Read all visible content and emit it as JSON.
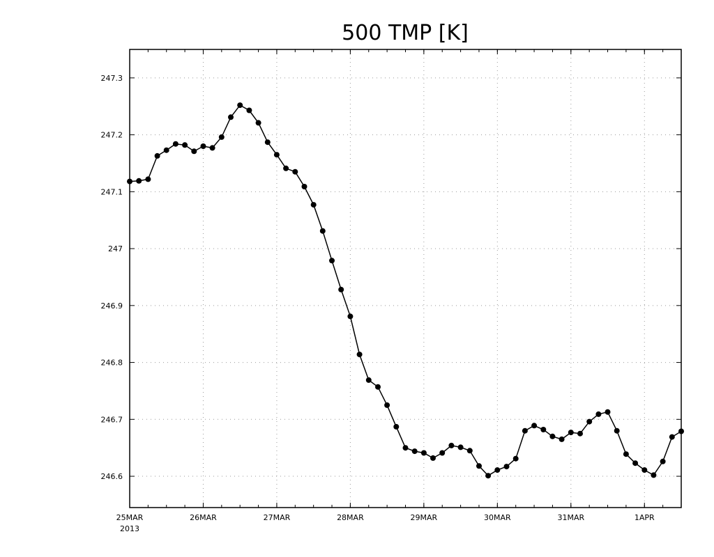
{
  "chart_data": {
    "type": "line",
    "title": "500 TMP [K]",
    "xlabel": "",
    "ylabel": "",
    "grid": true,
    "ylim": [
      246.545,
      247.35
    ],
    "y_ticks": [
      246.6,
      246.7,
      246.8,
      246.9,
      247,
      247.1,
      247.2,
      247.3
    ],
    "y_tick_labels": [
      "246.6",
      "246.7",
      "246.8",
      "246.9",
      "247",
      "247.1",
      "247.2",
      "247.3"
    ],
    "xlim": [
      "2013-03-25T00",
      "2013-04-01T12"
    ],
    "x_ticks": [
      "2013-03-25T00",
      "2013-03-26T00",
      "2013-03-27T00",
      "2013-03-28T00",
      "2013-03-29T00",
      "2013-03-30T00",
      "2013-03-31T00",
      "2013-04-01T00"
    ],
    "x_tick_labels": [
      "25MAR",
      "26MAR",
      "27MAR",
      "28MAR",
      "29MAR",
      "30MAR",
      "31MAR",
      "1APR"
    ],
    "x_year_label": "2013",
    "marker": "filled-circle",
    "series": [
      {
        "x": [
          "2013-03-25T00",
          "2013-03-25T03",
          "2013-03-25T06",
          "2013-03-25T09",
          "2013-03-25T12",
          "2013-03-25T15",
          "2013-03-25T18",
          "2013-03-25T21",
          "2013-03-26T00",
          "2013-03-26T03",
          "2013-03-26T06",
          "2013-03-26T09",
          "2013-03-26T12",
          "2013-03-26T15",
          "2013-03-26T18",
          "2013-03-26T21",
          "2013-03-27T00",
          "2013-03-27T03",
          "2013-03-27T06",
          "2013-03-27T09",
          "2013-03-27T12",
          "2013-03-27T15",
          "2013-03-27T18",
          "2013-03-27T21",
          "2013-03-28T00",
          "2013-03-28T03",
          "2013-03-28T06",
          "2013-03-28T09",
          "2013-03-28T12",
          "2013-03-28T15",
          "2013-03-28T18",
          "2013-03-28T21",
          "2013-03-29T00",
          "2013-03-29T03",
          "2013-03-29T06",
          "2013-03-29T09",
          "2013-03-29T12",
          "2013-03-29T15",
          "2013-03-29T18",
          "2013-03-29T21",
          "2013-03-30T00",
          "2013-03-30T03",
          "2013-03-30T06",
          "2013-03-30T09",
          "2013-03-30T12",
          "2013-03-30T15",
          "2013-03-30T18",
          "2013-03-30T21",
          "2013-03-31T00",
          "2013-03-31T03",
          "2013-03-31T06",
          "2013-03-31T09",
          "2013-03-31T12",
          "2013-03-31T15",
          "2013-03-31T18",
          "2013-03-31T21",
          "2013-04-01T00",
          "2013-04-01T03",
          "2013-04-01T06",
          "2013-04-01T09",
          "2013-04-01T12"
        ],
        "values": [
          247.118,
          247.119,
          247.122,
          247.163,
          247.173,
          247.184,
          247.182,
          247.171,
          247.18,
          247.177,
          247.196,
          247.231,
          247.252,
          247.243,
          247.221,
          247.187,
          247.165,
          247.141,
          247.135,
          247.109,
          247.077,
          247.031,
          246.979,
          246.928,
          246.881,
          246.814,
          246.769,
          246.757,
          246.725,
          246.687,
          246.65,
          246.644,
          246.641,
          246.632,
          246.641,
          246.654,
          246.651,
          246.645,
          246.618,
          246.601,
          246.611,
          246.617,
          246.631,
          246.68,
          246.689,
          246.682,
          246.67,
          246.665,
          246.677,
          246.675,
          246.696,
          246.709,
          246.713,
          246.68,
          246.639,
          246.623,
          246.611,
          246.602,
          246.626,
          246.669,
          246.679
        ]
      }
    ]
  }
}
